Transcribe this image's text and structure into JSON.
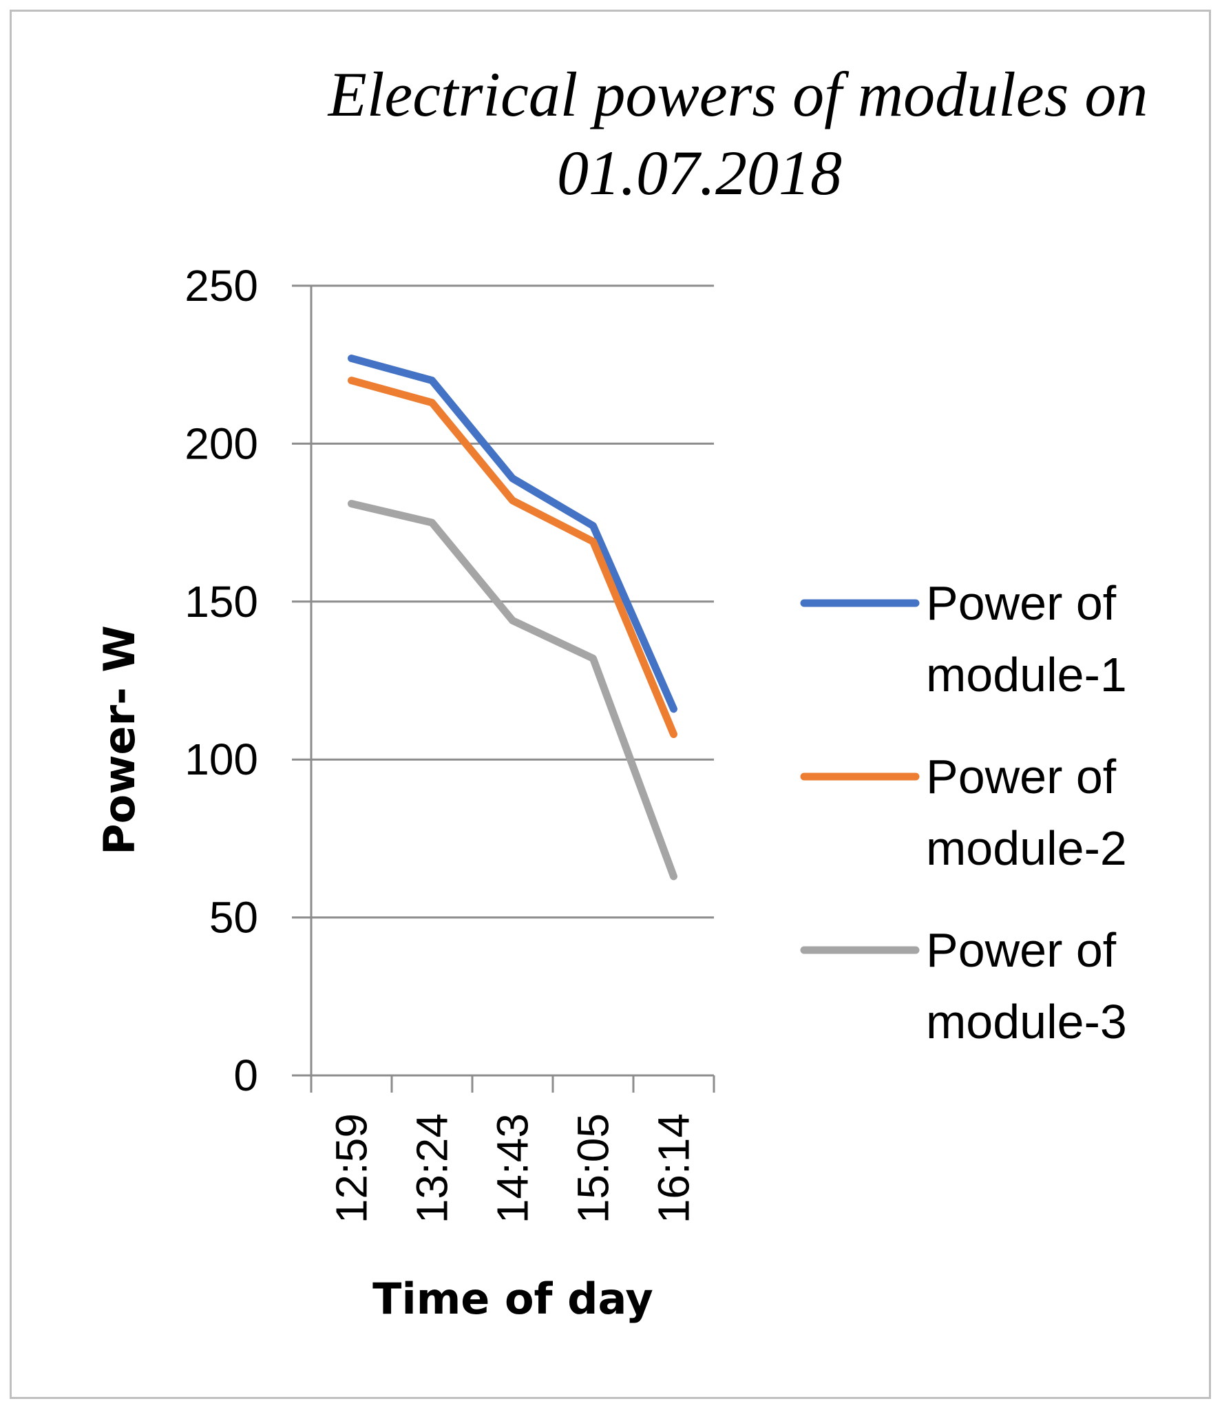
{
  "chart_data": {
    "type": "line",
    "title_lines": [
      "Electrical powers of modules on",
      "01.07.2018"
    ],
    "xlabel": "Time of day",
    "ylabel": "Power-  W",
    "categories": [
      "12:59",
      "13:24",
      "14:43",
      "15:05",
      "16:14"
    ],
    "ylim": [
      0,
      250
    ],
    "yticks": [
      0,
      50,
      100,
      150,
      200,
      250
    ],
    "grid": true,
    "legend_position": "right",
    "series": [
      {
        "name": "Power of module-1",
        "legend_lines": [
          "Power of",
          "module-1"
        ],
        "color": "#4472c4",
        "values": [
          227,
          220,
          189,
          174,
          116
        ]
      },
      {
        "name": "Power of module-2",
        "legend_lines": [
          "Power of",
          "module-2"
        ],
        "color": "#ed7d31",
        "values": [
          220,
          213,
          182,
          169,
          108
        ]
      },
      {
        "name": "Power of module-3",
        "legend_lines": [
          "Power of",
          "module-3"
        ],
        "color": "#a5a5a5",
        "values": [
          181,
          175,
          144,
          132,
          63
        ]
      }
    ]
  }
}
